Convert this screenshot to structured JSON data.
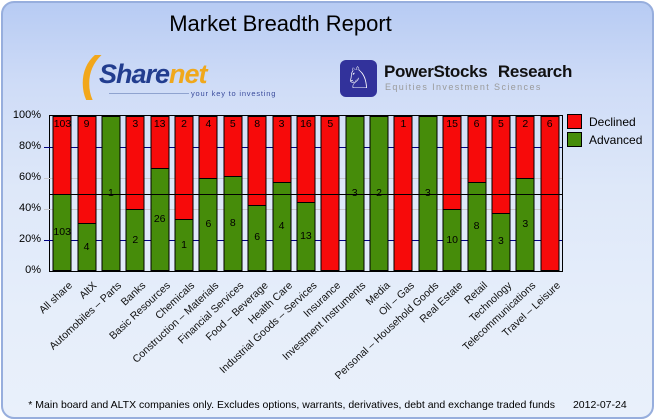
{
  "header": {
    "title": "Market Breadth Report"
  },
  "logos": {
    "sharenet": {
      "name_part1": "Share",
      "name_part2": "net",
      "tagline": "your key to investing",
      "accent_color": "#f0a81c",
      "text_color": "#223d8f"
    },
    "powerstocks": {
      "title": "PowerStocks Research",
      "tagline": "Equities Investment Sciences",
      "icon": "knight-chess-piece-icon",
      "icon_glyph": "♘",
      "icon_bg_color": "#32329b"
    }
  },
  "chart_data": {
    "type": "bar",
    "stacked": true,
    "normalized_to_percent": true,
    "title": "Market Breadth Report",
    "categories": [
      "All share",
      "AltX",
      "Automobiles – Parts",
      "Banks",
      "Basic Resources",
      "Chemicals",
      "Construction – Materials",
      "Financial Services",
      "Food – Beverage",
      "Health Care",
      "Industrial Goods – Services",
      "Insurance",
      "Investment Instruments",
      "Media",
      "Oil – Gas",
      "Personal – Household Goods",
      "Real Estate",
      "Retail",
      "Technology",
      "Telecommunications",
      "Travel – Leisure"
    ],
    "series": [
      {
        "name": "Declined",
        "color": "#f70a0a",
        "values": [
          103,
          9,
          0,
          3,
          13,
          2,
          4,
          5,
          8,
          3,
          16,
          5,
          0,
          0,
          1,
          0,
          15,
          6,
          5,
          2,
          6
        ]
      },
      {
        "name": "Advanced",
        "color": "#468c0a",
        "values": [
          103,
          4,
          1,
          2,
          26,
          1,
          6,
          8,
          6,
          4,
          13,
          0,
          3,
          2,
          0,
          3,
          10,
          8,
          3,
          3,
          0
        ]
      }
    ],
    "ylabel": "",
    "xlabel": "",
    "ylim": [
      0,
      100
    ],
    "y_ticks": [
      {
        "pct": 0,
        "label": "0%"
      },
      {
        "pct": 20,
        "label": "20%"
      },
      {
        "pct": 40,
        "label": "40%"
      },
      {
        "pct": 60,
        "label": "60%"
      },
      {
        "pct": 80,
        "label": "80%"
      },
      {
        "pct": 100,
        "label": "100%"
      }
    ],
    "gridlines": [
      {
        "pct": 20,
        "color": "#000080"
      },
      {
        "pct": 40,
        "color": "#c8c8cc"
      },
      {
        "pct": 60,
        "color": "#c8c8cc"
      },
      {
        "pct": 80,
        "color": "#000080"
      }
    ],
    "reference_line_pct": 50,
    "legend_position": "top-right",
    "legend": [
      "Declined",
      "Advanced"
    ]
  },
  "footer": {
    "note": "* Main board and ALTX companies only. Excludes options, warrants, derivatives, debt and exchange traded funds",
    "date": "2012-07-24"
  }
}
